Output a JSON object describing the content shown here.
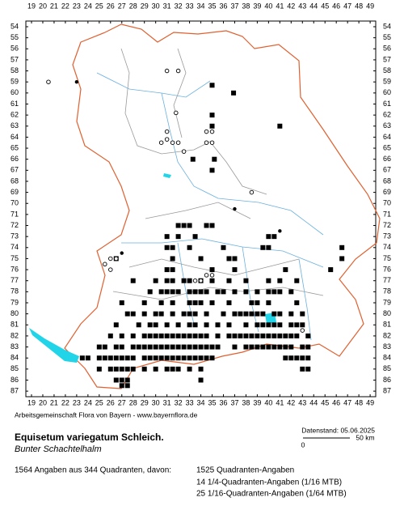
{
  "map": {
    "x_labels": [
      19,
      20,
      21,
      22,
      23,
      24,
      25,
      26,
      27,
      28,
      29,
      30,
      31,
      32,
      33,
      34,
      35,
      36,
      37,
      38,
      39,
      40,
      41,
      42,
      43,
      44,
      45,
      46,
      47,
      48,
      49
    ],
    "y_labels": [
      54,
      55,
      56,
      57,
      58,
      59,
      60,
      61,
      62,
      63,
      64,
      65,
      66,
      67,
      68,
      69,
      70,
      71,
      72,
      73,
      74,
      75,
      76,
      77,
      78,
      79,
      80,
      81,
      82,
      83,
      84,
      85,
      86,
      87
    ],
    "credit": "Arbeitsgemeinschaft Flora von Bayern - www.bayernflora.de",
    "date": "Datenstand: 05.06.2025",
    "scale_start": "0",
    "scale_end": "50 km",
    "squares": [
      {
        "row": 59.3,
        "cols": [
          35
        ]
      },
      {
        "row": 60,
        "cols": [
          36.9
        ]
      },
      {
        "row": 62,
        "cols": [
          35
        ]
      },
      {
        "row": 63,
        "cols": [
          35,
          41
        ]
      },
      {
        "row": 66,
        "cols": [
          33.3,
          35.2
        ]
      },
      {
        "row": 67,
        "cols": [
          35
        ]
      },
      {
        "row": 72,
        "cols": [
          32,
          32.5,
          33,
          34.5,
          35
        ]
      },
      {
        "row": 73,
        "cols": [
          31,
          32,
          33.5,
          40,
          40.5
        ]
      },
      {
        "row": 74,
        "cols": [
          31,
          31.5,
          33,
          36,
          39.5,
          40,
          46.5
        ]
      },
      {
        "row": 75,
        "cols": [
          26.5,
          31.5,
          34,
          36.5,
          37,
          46.5
        ]
      },
      {
        "row": 76,
        "cols": [
          31,
          31.5,
          35,
          37,
          41.5,
          45.5
        ]
      },
      {
        "row": 77,
        "cols": [
          28,
          30,
          31,
          31.5,
          32.5,
          33,
          34,
          35,
          36.5,
          38,
          40,
          41,
          42.5
        ]
      },
      {
        "row": 78,
        "cols": [
          29.5,
          30.5,
          31,
          31.5,
          32,
          33,
          33.5,
          34,
          34.5,
          35.5,
          36,
          37,
          38,
          39,
          40,
          40.5,
          41,
          42
        ]
      },
      {
        "row": 79,
        "cols": [
          27,
          29,
          30.5,
          31.5,
          33,
          33.5,
          34,
          35,
          36.5,
          38.5,
          39,
          40,
          42.5
        ]
      },
      {
        "row": 80,
        "cols": [
          27.5,
          28,
          29,
          30,
          30.5,
          31.5,
          32.5,
          33,
          33.5,
          34.5,
          36,
          37,
          37.5,
          38,
          38.5,
          39,
          39.5,
          40.5,
          41,
          42,
          43
        ]
      },
      {
        "row": 81,
        "cols": [
          26.5,
          28.5,
          29.5,
          30,
          31,
          32,
          33,
          33.5,
          34.5,
          35.5,
          36.5,
          38,
          39,
          39.5,
          40,
          40.5,
          41,
          42,
          42.5,
          43
        ]
      },
      {
        "row": 82,
        "cols": [
          26,
          27,
          28,
          29,
          29.5,
          30,
          30.5,
          31,
          31.5,
          32,
          32.5,
          33,
          33.5,
          34,
          34.5,
          35.5,
          36.5,
          37,
          37.5,
          38,
          38.5,
          39,
          39.5,
          40,
          40.5,
          41,
          41.5,
          42,
          42.5,
          43.5
        ]
      },
      {
        "row": 83,
        "cols": [
          25,
          25.5,
          26.5,
          27,
          28,
          28.5,
          29,
          29.5,
          30,
          30.5,
          31,
          31.5,
          32,
          32.5,
          33,
          33.5,
          34,
          34.5,
          35,
          35.5,
          37,
          38,
          38.5,
          39,
          39.5,
          40,
          40.5,
          41,
          41.5,
          42,
          43,
          43.5
        ]
      },
      {
        "row": 84,
        "cols": [
          23.5,
          24,
          25,
          25.5,
          26,
          26.5,
          27,
          27.5,
          28,
          29,
          29.5,
          30,
          30.5,
          31,
          31.5,
          32,
          32.5,
          33,
          33.5,
          34,
          34.5,
          35,
          41.5,
          42,
          42.5,
          43,
          43.5
        ]
      },
      {
        "row": 85,
        "cols": [
          25,
          26,
          26.5,
          27,
          27.5,
          28,
          29,
          30,
          31,
          31.5,
          32,
          33,
          34,
          43,
          43.5
        ]
      },
      {
        "row": 86,
        "cols": [
          26.5,
          27,
          27.5,
          34
        ]
      },
      {
        "row": 86.5,
        "cols": [
          27,
          27.5
        ]
      }
    ],
    "circles": [
      {
        "row": 59,
        "cols": [
          20.5
        ]
      },
      {
        "row": 58,
        "cols": [
          31,
          32
        ]
      },
      {
        "row": 61.8,
        "cols": [
          31.8
        ]
      },
      {
        "row": 63.5,
        "cols": [
          31,
          34.5,
          35
        ]
      },
      {
        "row": 64.2,
        "cols": [
          31
        ]
      },
      {
        "row": 64.5,
        "cols": [
          30.5,
          31.5,
          32,
          34.5,
          35
        ]
      },
      {
        "row": 65.3,
        "cols": [
          32.5
        ]
      },
      {
        "row": 69,
        "cols": [
          38.5
        ]
      },
      {
        "row": 75,
        "cols": [
          26,
          26.5
        ]
      },
      {
        "row": 75.5,
        "cols": [
          25.5
        ]
      },
      {
        "row": 76,
        "cols": [
          26
        ]
      },
      {
        "row": 76.5,
        "cols": [
          34.5,
          35
        ]
      },
      {
        "row": 77,
        "cols": [
          33.5,
          34
        ]
      },
      {
        "row": 81.5,
        "cols": [
          43
        ]
      }
    ],
    "dots": [
      {
        "row": 59,
        "cols": [
          23
        ]
      },
      {
        "row": 70.5,
        "cols": [
          37
        ]
      },
      {
        "row": 72.5,
        "cols": [
          41
        ]
      },
      {
        "row": 74,
        "cols": [
          46.5
        ]
      },
      {
        "row": 74.5,
        "cols": [
          27
        ]
      }
    ]
  },
  "title": "Equisetum variegatum Schleich.",
  "subtitle": "Bunter Schachtelhalm",
  "summary": "1564 Angaben aus 344 Quadranten, davon:",
  "counts": [
    "1525 Quadranten-Angaben",
    "14 1/4-Quadranten-Angaben (1/16 MTB)",
    "25 1/16-Quadranten-Angaben (1/64 MTB)"
  ]
}
